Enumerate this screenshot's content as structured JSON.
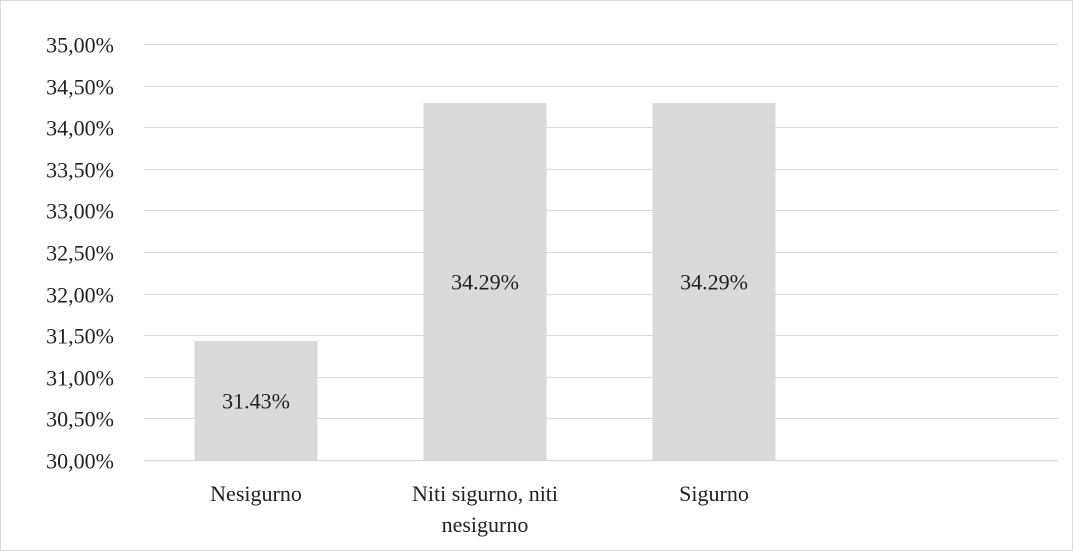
{
  "chart_data": {
    "type": "bar",
    "categories": [
      "Nesigurno",
      "Niti sigurno, niti nesigurno",
      "Sigurno"
    ],
    "category_label_lines": [
      [
        "Nesigurno"
      ],
      [
        "Niti sigurno, niti",
        "nesigurno"
      ],
      [
        "Sigurno"
      ]
    ],
    "values": [
      31.43,
      34.29,
      34.29
    ],
    "data_labels": [
      "31.43%",
      "34.29%",
      "34.29%"
    ],
    "ylim": [
      30,
      35
    ],
    "yticks": [
      30,
      30.5,
      31,
      31.5,
      32,
      32.5,
      33,
      33.5,
      34,
      34.5,
      35
    ],
    "ytick_labels": [
      "30,00%",
      "30,50%",
      "31,00%",
      "31,50%",
      "32,00%",
      "32,50%",
      "33,00%",
      "33,50%",
      "34,00%",
      "34,50%",
      "35,00%"
    ],
    "title": "",
    "xlabel": "",
    "ylabel": "",
    "grid": true,
    "legend": "none",
    "bar_color": "#d9d9d9",
    "grid_color": "#d9d9d9",
    "text_color": "#222222"
  }
}
